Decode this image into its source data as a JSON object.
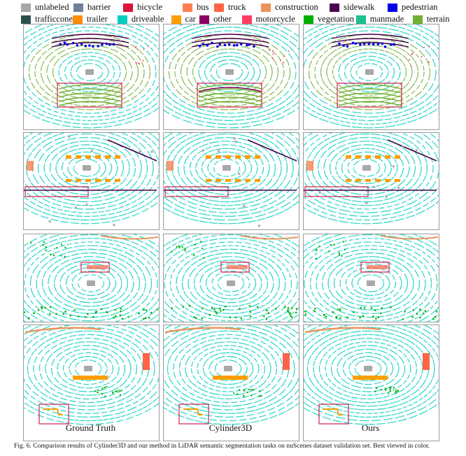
{
  "legend": [
    {
      "label": "unlabeled",
      "color": "#a8a8a8"
    },
    {
      "label": "barrier",
      "color": "#70809a"
    },
    {
      "label": "bicycle",
      "color": "#dc143c"
    },
    {
      "label": "bus",
      "color": "#ff7f50"
    },
    {
      "label": "truck",
      "color": "#ff6347"
    },
    {
      "label": "construction",
      "color": "#e9965a"
    },
    {
      "label": "sidewalk",
      "color": "#4b0050"
    },
    {
      "label": "pedestrian",
      "color": "#0000e6"
    },
    {
      "label": "trafficcone",
      "color": "#2f4f4f"
    },
    {
      "label": "trailer",
      "color": "#ff8c00"
    },
    {
      "label": "driveable",
      "color": "#00cfbf"
    },
    {
      "label": "car",
      "color": "#ff9e00"
    },
    {
      "label": "other",
      "color": "#8b0060"
    },
    {
      "label": "motorcycle",
      "color": "#ff3d63"
    },
    {
      "label": "vegetation",
      "color": "#00af00"
    },
    {
      "label": "manmade",
      "color": "#1fbf8f"
    },
    {
      "label": "terrain",
      "color": "#6fb033"
    }
  ],
  "columns": [
    "Ground Truth",
    "Cylinder3D",
    "Ours"
  ],
  "caption": "Fig. 6.  Comparison results of Cylinder3D and our method in LiDAR semantic segmentation tasks on nuScenes dataset validation set. Best viewed in color."
}
